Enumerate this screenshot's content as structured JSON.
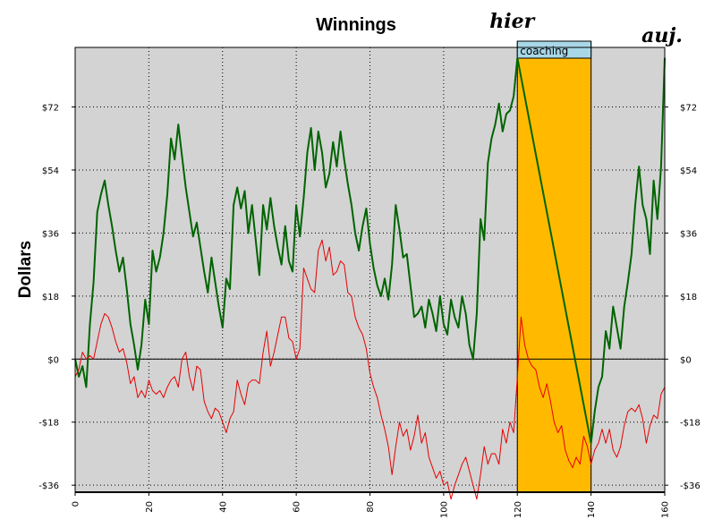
{
  "chart_data": {
    "type": "line",
    "title": "Winnings",
    "xlabel": "",
    "ylabel": "Dollars",
    "xlim": [
      0,
      160
    ],
    "ylim": [
      -38,
      89
    ],
    "x_ticks": [
      0,
      20,
      40,
      60,
      80,
      100,
      120,
      140,
      160
    ],
    "y_ticks": [
      -36,
      -18,
      0,
      18,
      36,
      54,
      72
    ],
    "y_tick_labels": [
      "-$36",
      "-$18",
      "$0",
      "$18",
      "$36",
      "$54",
      "$72"
    ],
    "grid": true,
    "background": "#d3d3d3",
    "annotations": [
      {
        "text": "hier",
        "x": 120
      },
      {
        "text": "auj.",
        "x": 160
      }
    ],
    "shaded_region": {
      "label": "coaching",
      "x_start": 120,
      "x_end": 140,
      "color": "#ffba00",
      "label_color": "#a8d8e8"
    },
    "series": [
      {
        "color": "#006400",
        "points": [
          [
            0,
            0
          ],
          [
            1,
            -5
          ],
          [
            2,
            -2
          ],
          [
            3,
            -8
          ],
          [
            4,
            10
          ],
          [
            5,
            22
          ],
          [
            6,
            42
          ],
          [
            7,
            47
          ],
          [
            8,
            51
          ],
          [
            9,
            44
          ],
          [
            10,
            38
          ],
          [
            11,
            31
          ],
          [
            12,
            25
          ],
          [
            13,
            29
          ],
          [
            14,
            20
          ],
          [
            15,
            10
          ],
          [
            16,
            4
          ],
          [
            17,
            -3
          ],
          [
            18,
            4
          ],
          [
            19,
            17
          ],
          [
            20,
            10
          ],
          [
            21,
            31
          ],
          [
            22,
            25
          ],
          [
            23,
            29
          ],
          [
            24,
            36
          ],
          [
            25,
            47
          ],
          [
            26,
            63
          ],
          [
            27,
            57
          ],
          [
            28,
            67
          ],
          [
            29,
            58
          ],
          [
            30,
            49
          ],
          [
            31,
            42
          ],
          [
            32,
            35
          ],
          [
            33,
            39
          ],
          [
            34,
            32
          ],
          [
            35,
            25
          ],
          [
            36,
            19
          ],
          [
            37,
            29
          ],
          [
            38,
            22
          ],
          [
            39,
            15
          ],
          [
            40,
            9
          ],
          [
            41,
            23
          ],
          [
            42,
            20
          ],
          [
            43,
            44
          ],
          [
            44,
            49
          ],
          [
            45,
            43
          ],
          [
            46,
            48
          ],
          [
            47,
            36
          ],
          [
            48,
            44
          ],
          [
            49,
            34
          ],
          [
            50,
            24
          ],
          [
            51,
            44
          ],
          [
            52,
            37
          ],
          [
            53,
            46
          ],
          [
            54,
            38
          ],
          [
            55,
            32
          ],
          [
            56,
            27
          ],
          [
            57,
            38
          ],
          [
            58,
            28
          ],
          [
            59,
            25
          ],
          [
            60,
            44
          ],
          [
            61,
            35
          ],
          [
            62,
            46
          ],
          [
            63,
            59
          ],
          [
            64,
            66
          ],
          [
            65,
            54
          ],
          [
            66,
            65
          ],
          [
            67,
            59
          ],
          [
            68,
            49
          ],
          [
            69,
            53
          ],
          [
            70,
            62
          ],
          [
            71,
            55
          ],
          [
            72,
            65
          ],
          [
            73,
            57
          ],
          [
            74,
            50
          ],
          [
            75,
            44
          ],
          [
            76,
            36
          ],
          [
            77,
            31
          ],
          [
            78,
            38
          ],
          [
            79,
            43
          ],
          [
            80,
            33
          ],
          [
            81,
            26
          ],
          [
            82,
            21
          ],
          [
            83,
            18
          ],
          [
            84,
            23
          ],
          [
            85,
            17
          ],
          [
            86,
            27
          ],
          [
            87,
            44
          ],
          [
            88,
            37
          ],
          [
            89,
            29
          ],
          [
            90,
            30
          ],
          [
            91,
            21
          ],
          [
            92,
            12
          ],
          [
            93,
            13
          ],
          [
            94,
            15
          ],
          [
            95,
            9
          ],
          [
            96,
            17
          ],
          [
            97,
            13
          ],
          [
            98,
            8
          ],
          [
            99,
            18
          ],
          [
            100,
            10
          ],
          [
            101,
            7
          ],
          [
            102,
            17
          ],
          [
            103,
            12
          ],
          [
            104,
            9
          ],
          [
            105,
            18
          ],
          [
            106,
            13
          ],
          [
            107,
            4
          ],
          [
            108,
            0
          ],
          [
            109,
            13
          ],
          [
            110,
            40
          ],
          [
            111,
            34
          ],
          [
            112,
            56
          ],
          [
            113,
            63
          ],
          [
            114,
            67
          ],
          [
            115,
            73
          ],
          [
            116,
            65
          ],
          [
            117,
            70
          ],
          [
            118,
            71
          ],
          [
            119,
            75
          ],
          [
            120,
            86
          ],
          [
            140,
            -24
          ],
          [
            141,
            -15
          ],
          [
            142,
            -8
          ],
          [
            143,
            -5
          ],
          [
            144,
            8
          ],
          [
            145,
            3
          ],
          [
            146,
            15
          ],
          [
            147,
            9
          ],
          [
            148,
            3
          ],
          [
            149,
            15
          ],
          [
            150,
            22
          ],
          [
            151,
            30
          ],
          [
            152,
            44
          ],
          [
            153,
            55
          ],
          [
            154,
            44
          ],
          [
            155,
            40
          ],
          [
            156,
            30
          ],
          [
            157,
            51
          ],
          [
            158,
            40
          ],
          [
            159,
            55
          ],
          [
            160,
            86
          ]
        ]
      },
      {
        "color": "#e60000",
        "points": [
          [
            0,
            -5
          ],
          [
            1,
            -3
          ],
          [
            2,
            2
          ],
          [
            3,
            0
          ],
          [
            4,
            1
          ],
          [
            5,
            0
          ],
          [
            6,
            5
          ],
          [
            7,
            10
          ],
          [
            8,
            13
          ],
          [
            9,
            12
          ],
          [
            10,
            9
          ],
          [
            11,
            5
          ],
          [
            12,
            2
          ],
          [
            13,
            3
          ],
          [
            14,
            -1
          ],
          [
            15,
            -7
          ],
          [
            16,
            -5
          ],
          [
            17,
            -11
          ],
          [
            18,
            -9
          ],
          [
            19,
            -11
          ],
          [
            20,
            -6
          ],
          [
            21,
            -9
          ],
          [
            22,
            -10
          ],
          [
            23,
            -9
          ],
          [
            24,
            -11
          ],
          [
            25,
            -8
          ],
          [
            26,
            -6
          ],
          [
            27,
            -5
          ],
          [
            28,
            -8
          ],
          [
            29,
            0
          ],
          [
            30,
            2
          ],
          [
            31,
            -5
          ],
          [
            32,
            -9
          ],
          [
            33,
            -2
          ],
          [
            34,
            -3
          ],
          [
            35,
            -12
          ],
          [
            36,
            -15
          ],
          [
            37,
            -17
          ],
          [
            38,
            -14
          ],
          [
            39,
            -15
          ],
          [
            40,
            -18
          ],
          [
            41,
            -21
          ],
          [
            42,
            -17
          ],
          [
            43,
            -15
          ],
          [
            44,
            -6
          ],
          [
            45,
            -10
          ],
          [
            46,
            -13
          ],
          [
            47,
            -7
          ],
          [
            48,
            -6
          ],
          [
            49,
            -6
          ],
          [
            50,
            -7
          ],
          [
            51,
            2
          ],
          [
            52,
            8
          ],
          [
            53,
            -2
          ],
          [
            54,
            2
          ],
          [
            55,
            7
          ],
          [
            56,
            12
          ],
          [
            57,
            12
          ],
          [
            58,
            6
          ],
          [
            59,
            5
          ],
          [
            60,
            0
          ],
          [
            61,
            3
          ],
          [
            62,
            26
          ],
          [
            63,
            23
          ],
          [
            64,
            20
          ],
          [
            65,
            19
          ],
          [
            66,
            31
          ],
          [
            67,
            34
          ],
          [
            68,
            28
          ],
          [
            69,
            32
          ],
          [
            70,
            24
          ],
          [
            71,
            25
          ],
          [
            72,
            28
          ],
          [
            73,
            27
          ],
          [
            74,
            19
          ],
          [
            75,
            18
          ],
          [
            76,
            12
          ],
          [
            77,
            9
          ],
          [
            78,
            7
          ],
          [
            79,
            3
          ],
          [
            80,
            -4
          ],
          [
            81,
            -8
          ],
          [
            82,
            -11
          ],
          [
            83,
            -16
          ],
          [
            84,
            -20
          ],
          [
            85,
            -25
          ],
          [
            86,
            -33
          ],
          [
            87,
            -25
          ],
          [
            88,
            -18
          ],
          [
            89,
            -22
          ],
          [
            90,
            -20
          ],
          [
            91,
            -26
          ],
          [
            92,
            -22
          ],
          [
            93,
            -16
          ],
          [
            94,
            -24
          ],
          [
            95,
            -21
          ],
          [
            96,
            -28
          ],
          [
            97,
            -31
          ],
          [
            98,
            -34
          ],
          [
            99,
            -32
          ],
          [
            100,
            -36
          ],
          [
            101,
            -35
          ],
          [
            102,
            -40
          ],
          [
            103,
            -36
          ],
          [
            104,
            -33
          ],
          [
            105,
            -30
          ],
          [
            106,
            -28
          ],
          [
            107,
            -32
          ],
          [
            108,
            -36
          ],
          [
            109,
            -40
          ],
          [
            110,
            -33
          ],
          [
            111,
            -25
          ],
          [
            112,
            -30
          ],
          [
            113,
            -27
          ],
          [
            114,
            -27
          ],
          [
            115,
            -30
          ],
          [
            116,
            -20
          ],
          [
            117,
            -24
          ],
          [
            118,
            -18
          ],
          [
            119,
            -21
          ],
          [
            120,
            -5
          ],
          [
            121,
            12
          ],
          [
            122,
            4
          ],
          [
            123,
            0
          ],
          [
            124,
            -2
          ],
          [
            125,
            -3
          ],
          [
            126,
            -8
          ],
          [
            127,
            -11
          ],
          [
            128,
            -7
          ],
          [
            129,
            -12
          ],
          [
            130,
            -18
          ],
          [
            131,
            -21
          ],
          [
            132,
            -19
          ],
          [
            133,
            -26
          ],
          [
            134,
            -29
          ],
          [
            135,
            -31
          ],
          [
            136,
            -28
          ],
          [
            137,
            -30
          ],
          [
            138,
            -22
          ],
          [
            139,
            -25
          ],
          [
            140,
            -30
          ],
          [
            141,
            -26
          ],
          [
            142,
            -24
          ],
          [
            143,
            -20
          ],
          [
            144,
            -24
          ],
          [
            145,
            -20
          ],
          [
            146,
            -26
          ],
          [
            147,
            -28
          ],
          [
            148,
            -25
          ],
          [
            149,
            -19
          ],
          [
            150,
            -15
          ],
          [
            151,
            -14
          ],
          [
            152,
            -15
          ],
          [
            153,
            -13
          ],
          [
            154,
            -17
          ],
          [
            155,
            -24
          ],
          [
            156,
            -19
          ],
          [
            157,
            -16
          ],
          [
            158,
            -17
          ],
          [
            159,
            -10
          ],
          [
            160,
            -8
          ]
        ]
      }
    ]
  }
}
